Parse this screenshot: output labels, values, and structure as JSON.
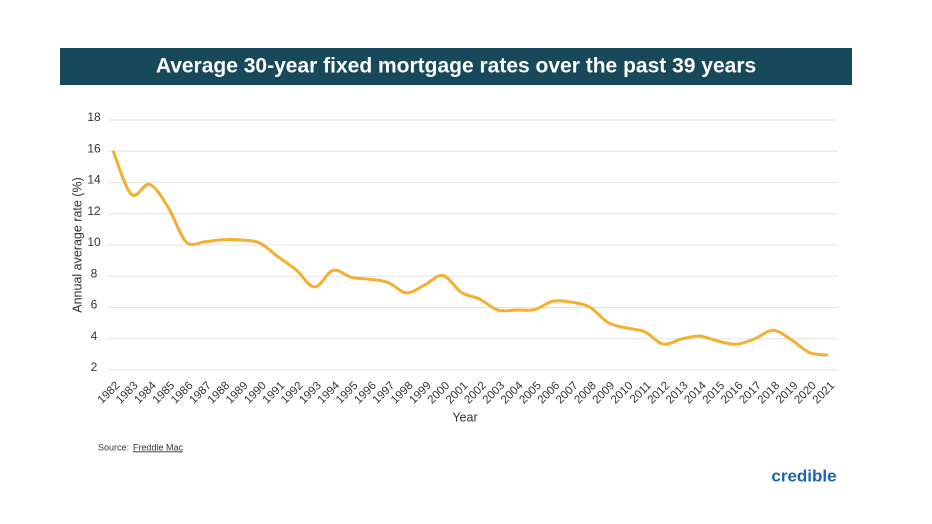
{
  "chart_data": {
    "type": "line",
    "title": "Average 30-year fixed mortgage rates over the past 39 years",
    "y_label": "Annual average rate (%)",
    "x_label": "Year",
    "source_prefix": "Source:",
    "source": "Freddie Mac",
    "brand": "credible",
    "categories": [
      "1982",
      "1983",
      "1984",
      "1985",
      "1986",
      "1987",
      "1988",
      "1989",
      "1990",
      "1991",
      "1992",
      "1993",
      "1994",
      "1995",
      "1996",
      "1997",
      "1998",
      "1999",
      "2000",
      "2001",
      "2002",
      "2003",
      "2004",
      "2005",
      "2006",
      "2007",
      "2008",
      "2009",
      "2010",
      "2011",
      "2012",
      "2013",
      "2014",
      "2015",
      "2016",
      "2017",
      "2018",
      "2019",
      "2020",
      "2021"
    ],
    "values": [
      16.04,
      13.24,
      13.88,
      12.43,
      10.19,
      10.21,
      10.34,
      10.32,
      10.13,
      9.25,
      8.39,
      7.31,
      8.38,
      7.93,
      7.81,
      7.6,
      6.94,
      7.44,
      8.05,
      6.97,
      6.54,
      5.83,
      5.84,
      5.87,
      6.41,
      6.34,
      6.03,
      5.04,
      4.69,
      4.45,
      3.66,
      3.98,
      4.17,
      3.85,
      3.65,
      3.99,
      4.54,
      3.94,
      3.11,
      2.96
    ],
    "color": "#f5ae2e",
    "ylim": [
      2,
      18
    ],
    "yticks": [
      2,
      4,
      6,
      8,
      10,
      12,
      14,
      16,
      18
    ],
    "grid": true
  }
}
